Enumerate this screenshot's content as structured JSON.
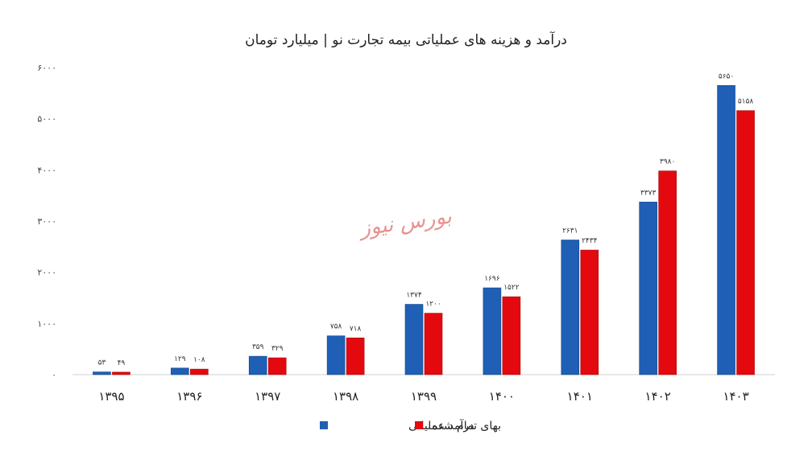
{
  "chart_data": {
    "type": "bar",
    "title": "درآمد و هزینه های عملیاتی بیمه تجارت نو | میلیارد تومان",
    "categories": [
      "۱۳۹۵",
      "۱۳۹۶",
      "۱۳۹۷",
      "۱۳۹۸",
      "۱۳۹۹",
      "۱۴۰۰",
      "۱۴۰۱",
      "۱۴۰۲",
      "۱۴۰۳"
    ],
    "series": [
      {
        "name": "درآمد عملیاتی",
        "color": "#1f5fb5",
        "values": [
          53,
          129,
          359,
          758,
          1374,
          1696,
          2631,
          3373,
          5650
        ],
        "labels": [
          "۵۳",
          "۱۲۹",
          "۳۵۹",
          "۷۵۸",
          "۱۳۷۴",
          "۱۶۹۶",
          "۲۶۳۱",
          "۳۳۷۳",
          "۵۶۵۰"
        ]
      },
      {
        "name": "بهای تمام شده",
        "color": "#e3090e",
        "values": [
          49,
          108,
          329,
          718,
          1200,
          1522,
          2434,
          3980,
          5158
        ],
        "labels": [
          "۴۹",
          "۱۰۸",
          "۳۲۹",
          "۷۱۸",
          "۱۲۰۰",
          "۱۵۲۲",
          "۲۴۳۴",
          "۳۹۸۰",
          "۵۱۵۸"
        ]
      }
    ],
    "ylim": [
      0,
      6000
    ],
    "yticks": [
      0,
      1000,
      2000,
      3000,
      4000,
      5000,
      6000
    ],
    "ytick_labels": [
      "۰",
      "۱۰۰۰",
      "۲۰۰۰",
      "۳۰۰۰",
      "۴۰۰۰",
      "۵۰۰۰",
      "۶۰۰۰"
    ],
    "grid": false,
    "legend_position": "bottom",
    "watermark": "بورس نیوز"
  }
}
